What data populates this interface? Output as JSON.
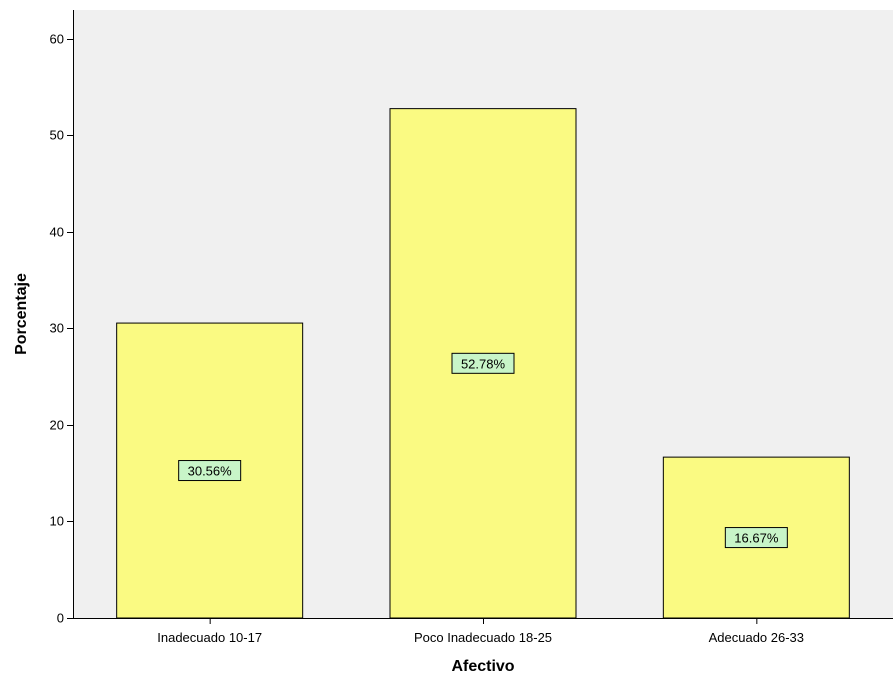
{
  "chart_data": {
    "type": "bar",
    "title": "",
    "xlabel": "Afectivo",
    "ylabel": "Porcentaje",
    "categories": [
      "Inadecuado 10-17",
      "Poco Inadecuado 18-25",
      "Adecuado 26-33"
    ],
    "values": [
      30.56,
      52.78,
      16.67
    ],
    "data_labels": [
      "30.56%",
      "52.78%",
      "16.67%"
    ],
    "ylim": [
      0,
      63
    ],
    "yticks": [
      0,
      10,
      20,
      30,
      40,
      50,
      60
    ],
    "ytick_labels": [
      "0",
      "10",
      "20",
      "30",
      "40",
      "50",
      "60"
    ],
    "grid": false,
    "legend": "none",
    "colors": {
      "plot_background": "#f0f0f0",
      "bar_fill": "#fafa82",
      "bar_stroke": "#000000",
      "label_box_fill": "#c8f5c8",
      "label_box_stroke": "#000000"
    }
  }
}
